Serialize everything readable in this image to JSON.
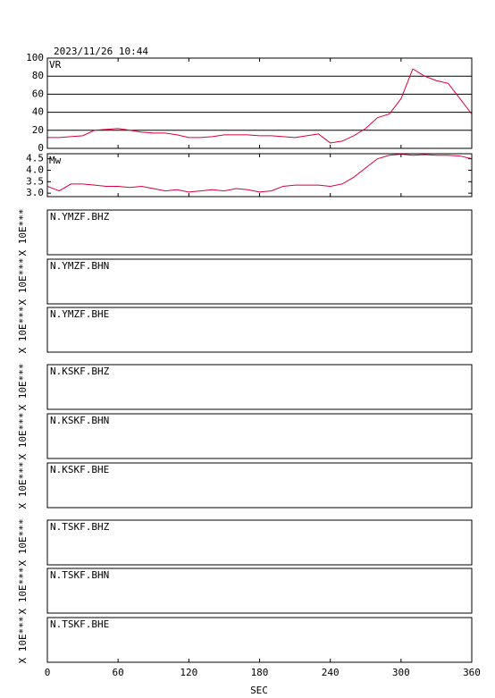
{
  "timestamp": "2023/11/26 10:44",
  "chart_data": [
    {
      "type": "line",
      "label": "VR",
      "x": [
        0,
        10,
        20,
        30,
        40,
        50,
        60,
        70,
        80,
        90,
        100,
        110,
        120,
        130,
        140,
        150,
        160,
        170,
        180,
        190,
        200,
        210,
        220,
        230,
        240,
        250,
        260,
        270,
        280,
        290,
        300,
        310,
        320,
        330,
        340,
        350,
        360
      ],
      "series": [
        {
          "color": "#d8003c",
          "values": [
            12,
            12,
            13,
            14,
            20,
            21,
            22,
            20,
            18,
            17,
            17,
            15,
            12,
            12,
            13,
            15,
            15,
            15,
            14,
            14,
            13,
            12,
            14,
            16,
            6,
            8,
            14,
            22,
            34,
            38,
            55,
            88,
            80,
            75,
            72,
            55,
            38
          ]
        }
      ],
      "xlim": [
        0,
        360
      ],
      "xticks": [
        0,
        60,
        120,
        180,
        240,
        300,
        360
      ],
      "ylim": [
        0,
        100
      ],
      "yticks": [
        0,
        20,
        40,
        60,
        80,
        100
      ],
      "grid": true
    },
    {
      "type": "line",
      "label": "Mw",
      "x": [
        0,
        10,
        20,
        30,
        40,
        50,
        60,
        70,
        80,
        90,
        100,
        110,
        120,
        130,
        140,
        150,
        160,
        170,
        180,
        190,
        200,
        210,
        220,
        230,
        240,
        250,
        260,
        270,
        280,
        290,
        300,
        310,
        320,
        330,
        340,
        350,
        360
      ],
      "series": [
        {
          "color": "#d8003c",
          "values": [
            3.3,
            3.1,
            3.4,
            3.4,
            3.35,
            3.3,
            3.3,
            3.25,
            3.3,
            3.2,
            3.1,
            3.15,
            3.05,
            3.1,
            3.15,
            3.1,
            3.2,
            3.15,
            3.05,
            3.1,
            3.3,
            3.35,
            3.35,
            3.35,
            3.3,
            3.4,
            3.7,
            4.1,
            4.5,
            4.65,
            4.7,
            4.65,
            4.68,
            4.65,
            4.65,
            4.62,
            4.5
          ]
        }
      ],
      "xlim": [
        0,
        360
      ],
      "xticks": [
        0,
        60,
        120,
        180,
        240,
        300,
        360
      ],
      "ylim": [
        2.85,
        4.72
      ],
      "yticks": [
        {
          "value": 3,
          "label": "3.0"
        },
        3.5,
        {
          "value": 4,
          "label": "4.0"
        },
        4.5
      ],
      "grid": false
    }
  ],
  "panels": [
    {
      "label": "N.YMZF.BHZ",
      "scale": "X 10E***"
    },
    {
      "label": "N.YMZF.BHN",
      "scale": "X 10E***"
    },
    {
      "label": "N.YMZF.BHE",
      "scale": "X 10E***"
    },
    {
      "label": "N.KSKF.BHZ",
      "scale": "X 10E***"
    },
    {
      "label": "N.KSKF.BHN",
      "scale": "X 10E***"
    },
    {
      "label": "N.KSKF.BHE",
      "scale": "X 10E***"
    },
    {
      "label": "N.TSKF.BHZ",
      "scale": "X 10E***"
    },
    {
      "label": "N.TSKF.BHN",
      "scale": "X 10E***"
    },
    {
      "label": "N.TSKF.BHE",
      "scale": "X 10E***"
    }
  ],
  "x_axis": {
    "label": "SEC",
    "xlim": [
      0,
      360
    ],
    "xticks": [
      0,
      60,
      120,
      180,
      240,
      300,
      360
    ]
  }
}
